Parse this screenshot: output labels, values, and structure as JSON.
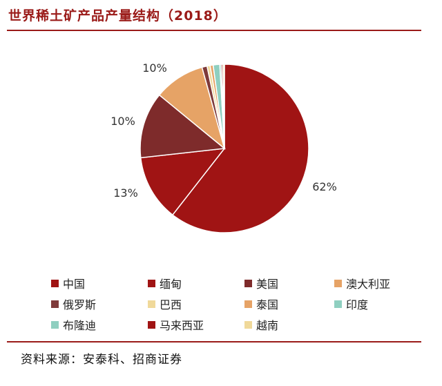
{
  "title": "世界稀土矿产品产量结构（2018）",
  "source": "资料来源：安泰科、招商证券",
  "chart_data": {
    "type": "pie",
    "slices": [
      {
        "name": "中国",
        "value": 62,
        "color": "#a01414",
        "label": "62%"
      },
      {
        "name": "缅甸",
        "value": 13,
        "color": "#a01414",
        "label": ""
      },
      {
        "name": "美国",
        "value": 13,
        "color": "#7e2b2b",
        "label": "13%"
      },
      {
        "name": "澳大利亚",
        "value": 10,
        "color": "#e6a366",
        "label": "10%"
      },
      {
        "name": "俄罗斯",
        "value": 1,
        "color": "#7e3a3a",
        "label": ""
      },
      {
        "name": "巴西",
        "value": 0.6,
        "color": "#f0d99a",
        "label": ""
      },
      {
        "name": "泰国",
        "value": 0.6,
        "color": "#e6a366",
        "label": ""
      },
      {
        "name": "印度",
        "value": 1.3,
        "color": "#8fcfc0",
        "label": ""
      },
      {
        "name": "布隆迪",
        "value": 0.3,
        "color": "#8fcfc0",
        "label": ""
      },
      {
        "name": "马来西亚",
        "value": 0.3,
        "color": "#a01414",
        "label": ""
      },
      {
        "name": "越南",
        "value": 0.3,
        "color": "#f0d99a",
        "label": ""
      }
    ],
    "extra_label": "10%"
  }
}
